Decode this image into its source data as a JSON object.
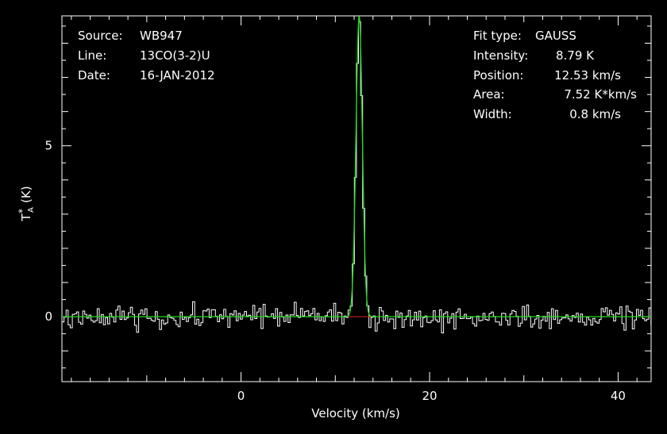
{
  "chart_data": {
    "type": "line",
    "xlabel": "Velocity (km/s)",
    "ylabel_main": "T",
    "ylabel_sub": "A",
    "ylabel_sup": "*",
    "ylabel_unit": "(K)",
    "xlim": [
      -19,
      43.5
    ],
    "ylim": [
      -1.9,
      8.8
    ],
    "x_ticks_labeled": [
      0,
      20,
      40
    ],
    "y_ticks_labeled": [
      0,
      5
    ],
    "x_tick_labels": [
      "0",
      "20",
      "40"
    ],
    "y_tick_labels": [
      "0",
      "5"
    ],
    "grid": false,
    "info_left": [
      {
        "key": "Source:",
        "value": "WB947"
      },
      {
        "key": "Line:",
        "value": "13CO(3-2)U"
      },
      {
        "key": "Date:",
        "value": "16-JAN-2012"
      }
    ],
    "info_right": [
      {
        "key": "Fit type:",
        "value": "GAUSS"
      },
      {
        "key": "Intensity:",
        "value": "8.79 K"
      },
      {
        "key": "Position:",
        "value": "12.53 km/s"
      },
      {
        "key": "Area:",
        "value": "7.52 K*km/s"
      },
      {
        "key": "Width:",
        "value": "0.8 km/s"
      }
    ],
    "series": [
      {
        "role": "spectrum",
        "color": "#ffffff",
        "noise_rms": 0.17,
        "channel_width": 0.22
      },
      {
        "role": "gaussian-fit",
        "color": "#22dd22",
        "amplitude": 8.79,
        "center": 12.53,
        "fwhm": 0.8
      },
      {
        "role": "fit-baseline",
        "color": "#dd2222",
        "x_range": [
          11.2,
          13.8
        ],
        "value": 0
      }
    ]
  }
}
